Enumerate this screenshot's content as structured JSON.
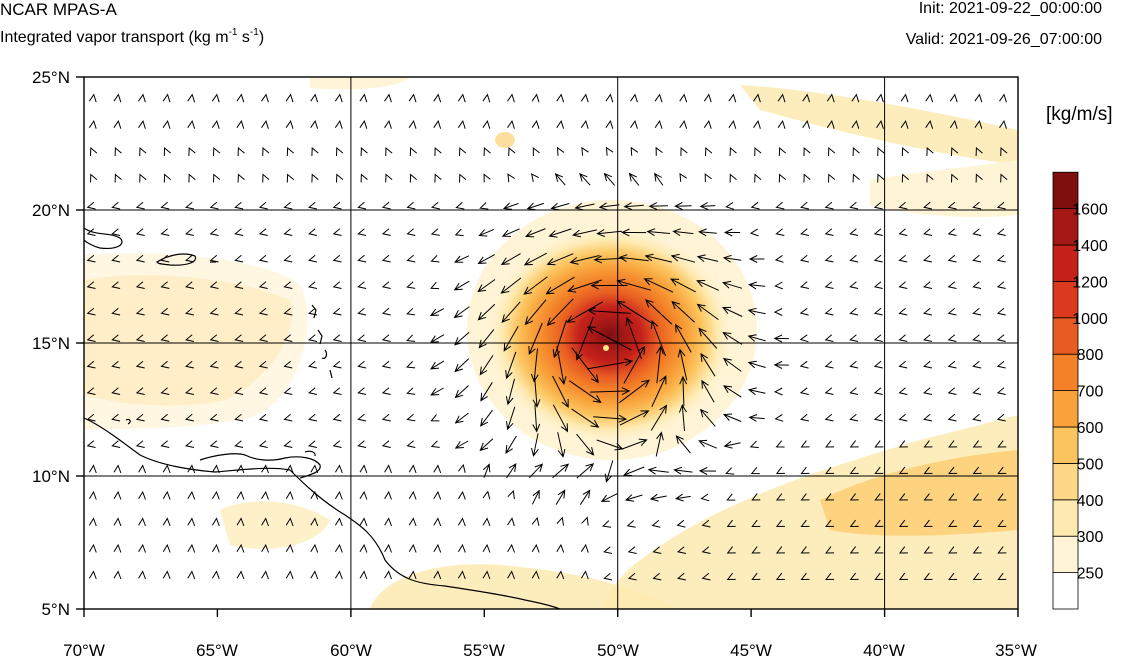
{
  "header": {
    "title": "NCAR MPAS-A",
    "subtitle_main": "Integrated vapor transport (kg m",
    "subtitle_exp1": "-1",
    "subtitle_mid": " s",
    "subtitle_exp2": "-1",
    "subtitle_end": ")",
    "init": "Init: 2021-09-22_00:00:00",
    "valid": "Valid: 2021-09-26_07:00:00"
  },
  "map": {
    "lon_range": [
      -70,
      -35
    ],
    "lat_range": [
      5,
      25
    ],
    "lon_ticks": [
      "70°W",
      "65°W",
      "60°W",
      "55°W",
      "50°W",
      "45°W",
      "40°W",
      "35°W"
    ],
    "lat_ticks": [
      "25°N",
      "20°N",
      "15°N",
      "10°N",
      "5°N"
    ],
    "gridlines": true,
    "storm_center": {
      "lon": -50.5,
      "lat": 14.8,
      "label": ""
    }
  },
  "colorbar": {
    "units": "[kg/m/s]",
    "levels": [
      "250",
      "300",
      "400",
      "500",
      "600",
      "700",
      "800",
      "1000",
      "1200",
      "1400",
      "1600"
    ],
    "colors": [
      "#ffffff",
      "#fff4d6",
      "#feeab0",
      "#fdd886",
      "#fcc45e",
      "#f9a13a",
      "#f38128",
      "#e85c22",
      "#dc3a1f",
      "#c5211b",
      "#a51816",
      "#7d0f0f"
    ]
  }
}
